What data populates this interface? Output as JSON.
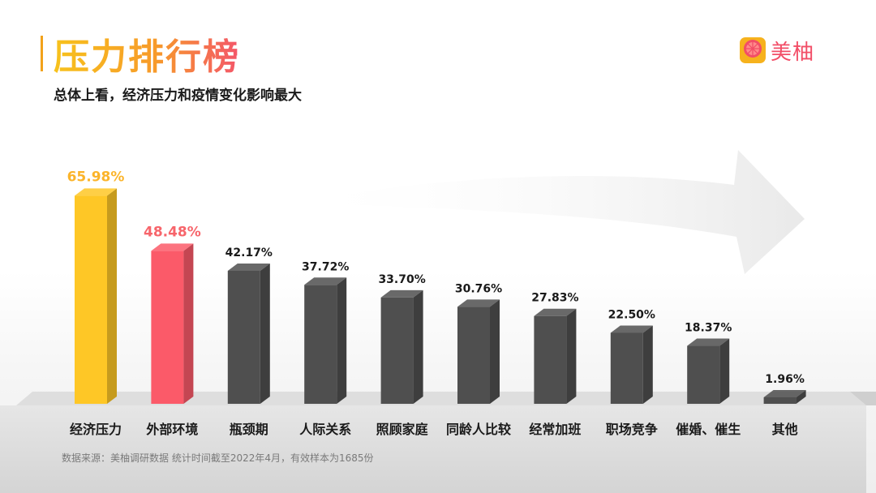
{
  "header": {
    "title": "压力排行榜",
    "subtitle": "总体上看，经济压力和疫情变化影响最大"
  },
  "brand": {
    "name": "美柚",
    "icon": "grapefruit-logo-icon"
  },
  "footer": {
    "source": "数据来源：美柚调研数据  统计时间截至2022年4月，有效样本为1685份"
  },
  "colors": {
    "first": "#fec726",
    "second": "#fb5a69",
    "other": "#4f4f4f",
    "label_first": "#fbb42a",
    "label_second": "#f7656b",
    "label_other": "#1a1a1a"
  },
  "chart_data": {
    "type": "bar",
    "categories": [
      "经济压力",
      "外部环境",
      "瓶颈期",
      "人际关系",
      "照顾家庭",
      "同龄人比较",
      "经常加班",
      "职场竞争",
      "催婚、催生",
      "其他"
    ],
    "values": [
      65.98,
      48.48,
      42.17,
      37.72,
      33.7,
      30.76,
      27.83,
      22.5,
      18.37,
      1.96
    ],
    "value_labels": [
      "65.98%",
      "48.48%",
      "42.17%",
      "37.72%",
      "33.70%",
      "30.76%",
      "27.83%",
      "22.50%",
      "18.37%",
      "1.96%"
    ],
    "unit": "%",
    "title": "压力排行榜",
    "grid": false,
    "legend": "none"
  }
}
